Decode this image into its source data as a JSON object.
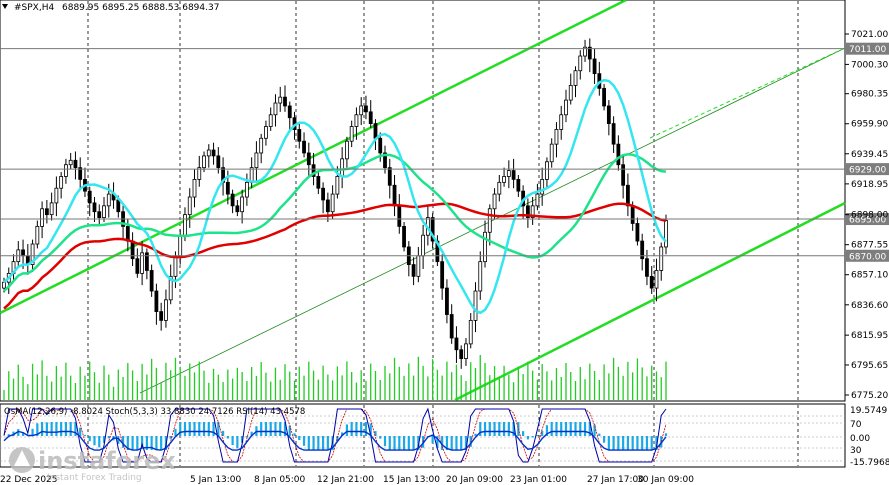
{
  "header": {
    "symbol": "#SPX,H4",
    "ohlc": "6889.95 6895.25 6888.53 6894.37"
  },
  "logo": {
    "name": "instaforex",
    "tagline": "Instant Forex Trading"
  },
  "indicators_label": "OsMA(12,26,9) -8.8024  Stoch(5,3,3) 33.8830 24.7126  RSI(14) 43.4578",
  "colors": {
    "ma_red": "#e00000",
    "ma_green": "#1ee38a",
    "ma_cyan": "#33e6f0",
    "channel": "#22dd22",
    "candle": "#000000",
    "volume": "#22cc22",
    "osma": "#1aa9e6",
    "stoch_main": "#0000aa",
    "stoch_signal": "#cc0000",
    "rsi": "#0033cc"
  },
  "chart_data": {
    "type": "line",
    "y_axis_ticks": [
      "7021.00",
      "7000.30",
      "6980.35",
      "6959.90",
      "6939.45",
      "6918.95",
      "6898.00",
      "6877.55",
      "6857.10",
      "6836.60",
      "6815.95",
      "6795.65",
      "6775.20"
    ],
    "price_tags": [
      {
        "value": "7011.00",
        "style": "gray"
      },
      {
        "value": "6929.00",
        "style": "gray"
      },
      {
        "value": "6895.00",
        "style": "gray"
      },
      {
        "value": "6870.00",
        "style": "gray"
      }
    ],
    "x_ticks": [
      "22 Dec 2025",
      "5 Jan 13:00",
      "8 Jan 05:00",
      "12 Jan 21:00",
      "15 Jan 13:00",
      "20 Jan 09:00",
      "23 Jan 01:00",
      "27 Jan 17:00",
      "30 Jan 09:00"
    ],
    "sub_axis_ticks": [
      "19.5749",
      "70",
      "30",
      "0.00",
      "-15.7968"
    ],
    "ylim": [
      6775.2,
      7021.0
    ],
    "grid": "vertical dashed",
    "series": [
      {
        "values": [
          6852,
          6858,
          6866,
          6874,
          6870,
          6864,
          6878,
          6890,
          6902,
          6898,
          6906,
          6916,
          6924,
          6932,
          6935,
          6930,
          6922,
          6914,
          6906,
          6900,
          6896,
          6904,
          6912,
          6908,
          6900,
          6890,
          6880,
          6868,
          6858,
          6872,
          6860,
          6846,
          6832,
          6826,
          6840,
          6856,
          6870,
          6884,
          6898,
          6910,
          6922,
          6930,
          6938,
          6942,
          6938,
          6930,
          6920,
          6912,
          6904,
          6900,
          6910,
          6920,
          6930,
          6940,
          6950,
          6958,
          6966,
          6974,
          6978,
          6972,
          6964,
          6956,
          6948,
          6940,
          6932,
          6924,
          6916,
          6908,
          6900,
          6912,
          6924,
          6936,
          6948,
          6958,
          6966,
          6972,
          6968,
          6960,
          6950,
          6940,
          6930,
          6918,
          6904,
          6890,
          6876,
          6864,
          6856,
          6870,
          6884,
          6896,
          6880,
          6866,
          6848,
          6830,
          6814,
          6806,
          6800,
          6810,
          6826,
          6846,
          6866,
          6886,
          6902,
          6912,
          6920,
          6924,
          6928,
          6922,
          6914,
          6904,
          6896,
          6904,
          6912,
          6922,
          6934,
          6946,
          6956,
          6966,
          6976,
          6986,
          6996,
          7006,
          7012,
          7004,
          6994,
          6984,
          6972,
          6960,
          6946,
          6932,
          6918,
          6904,
          6892,
          6880,
          6868,
          6856,
          6848,
          6860,
          6876,
          6894
        ]
      }
    ]
  }
}
